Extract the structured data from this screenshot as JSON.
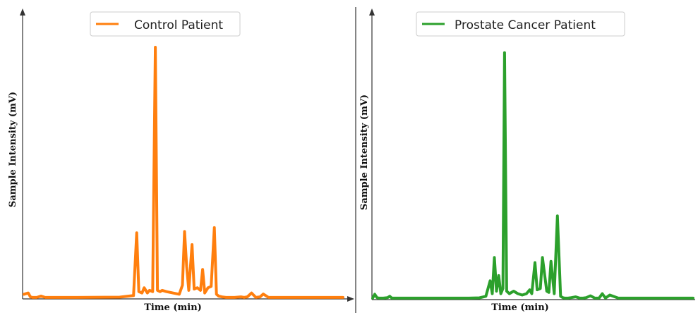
{
  "chart_data": [
    {
      "type": "line",
      "xlabel": "Time (min)",
      "ylabel": "Sample Intensity (mV)",
      "xlim": [
        0,
        30
      ],
      "ylim": [
        0,
        100
      ],
      "legend_position": "top-center",
      "grid": false,
      "color": "#ff7f0e",
      "series": [
        {
          "name": "Control Patient",
          "x": [
            0,
            0.4,
            0.6,
            0.8,
            1.2,
            1.6,
            2.0,
            5.0,
            9.0,
            10.3,
            10.6,
            10.8,
            11.1,
            11.3,
            11.6,
            11.8,
            12.1,
            12.35,
            12.55,
            12.8,
            13.0,
            13.4,
            14.0,
            14.6,
            14.9,
            15.1,
            15.3,
            15.5,
            15.8,
            16.0,
            16.3,
            16.6,
            16.8,
            17.0,
            17.3,
            17.6,
            17.9,
            18.1,
            18.3,
            18.6,
            19.0,
            19.8,
            20.4,
            20.7,
            21.0,
            21.4,
            21.8,
            22.2,
            22.5,
            23.0,
            25.0,
            28.0,
            30.0
          ],
          "y": [
            1.5,
            2.0,
            0.5,
            0.3,
            0.3,
            0.8,
            0.3,
            0.3,
            0.4,
            1.0,
            25.0,
            2.5,
            2.0,
            4.0,
            2.0,
            3.0,
            2.5,
            96.0,
            3.0,
            2.5,
            3.0,
            2.5,
            2.0,
            1.5,
            5.0,
            25.5,
            12.0,
            3.0,
            20.5,
            3.5,
            4.0,
            3.0,
            11.0,
            2.0,
            4.0,
            4.5,
            27.0,
            1.5,
            0.8,
            0.5,
            0.3,
            0.3,
            0.5,
            0.3,
            0.5,
            2.0,
            0.3,
            0.5,
            1.6,
            0.3,
            0.3,
            0.3,
            0.3
          ]
        }
      ]
    },
    {
      "type": "line",
      "xlabel": "Time (min)",
      "ylabel": "Sample Intensity (mV)",
      "xlim": [
        0,
        30
      ],
      "ylim": [
        0,
        100
      ],
      "legend_position": "top-center",
      "grid": false,
      "color": "#2ca02c",
      "series": [
        {
          "name": "Prostate Cancer Patient",
          "x": [
            0,
            0.2,
            0.4,
            0.6,
            1.0,
            1.4,
            1.6,
            1.8,
            2.2,
            5.0,
            9.0,
            10.0,
            10.6,
            11.0,
            11.2,
            11.4,
            11.6,
            11.8,
            12.0,
            12.2,
            12.35,
            12.55,
            12.8,
            13.2,
            13.6,
            14.0,
            14.4,
            14.7,
            14.9,
            15.2,
            15.4,
            15.7,
            15.9,
            16.3,
            16.5,
            16.7,
            17.0,
            17.3,
            17.6,
            17.8,
            18.0,
            18.3,
            18.6,
            19.0,
            19.4,
            19.7,
            20.0,
            20.4,
            20.8,
            21.2,
            21.5,
            21.8,
            22.2,
            23.0,
            25.0,
            28.0,
            30.0
          ],
          "y": [
            0.3,
            1.8,
            0.5,
            0.3,
            0.3,
            0.5,
            1.0,
            0.3,
            0.3,
            0.3,
            0.3,
            0.4,
            1.0,
            7.0,
            2.0,
            16.0,
            3.0,
            9.0,
            2.0,
            4.0,
            95.0,
            3.0,
            2.0,
            3.0,
            2.0,
            1.5,
            2.0,
            3.5,
            2.0,
            14.0,
            3.5,
            4.0,
            16.0,
            3.0,
            2.5,
            14.5,
            2.0,
            32.0,
            1.0,
            0.5,
            0.3,
            0.3,
            0.5,
            0.8,
            0.3,
            0.3,
            0.5,
            1.2,
            0.3,
            0.3,
            2.0,
            0.3,
            1.5,
            0.3,
            0.3,
            0.3,
            0.3
          ]
        }
      ]
    }
  ]
}
